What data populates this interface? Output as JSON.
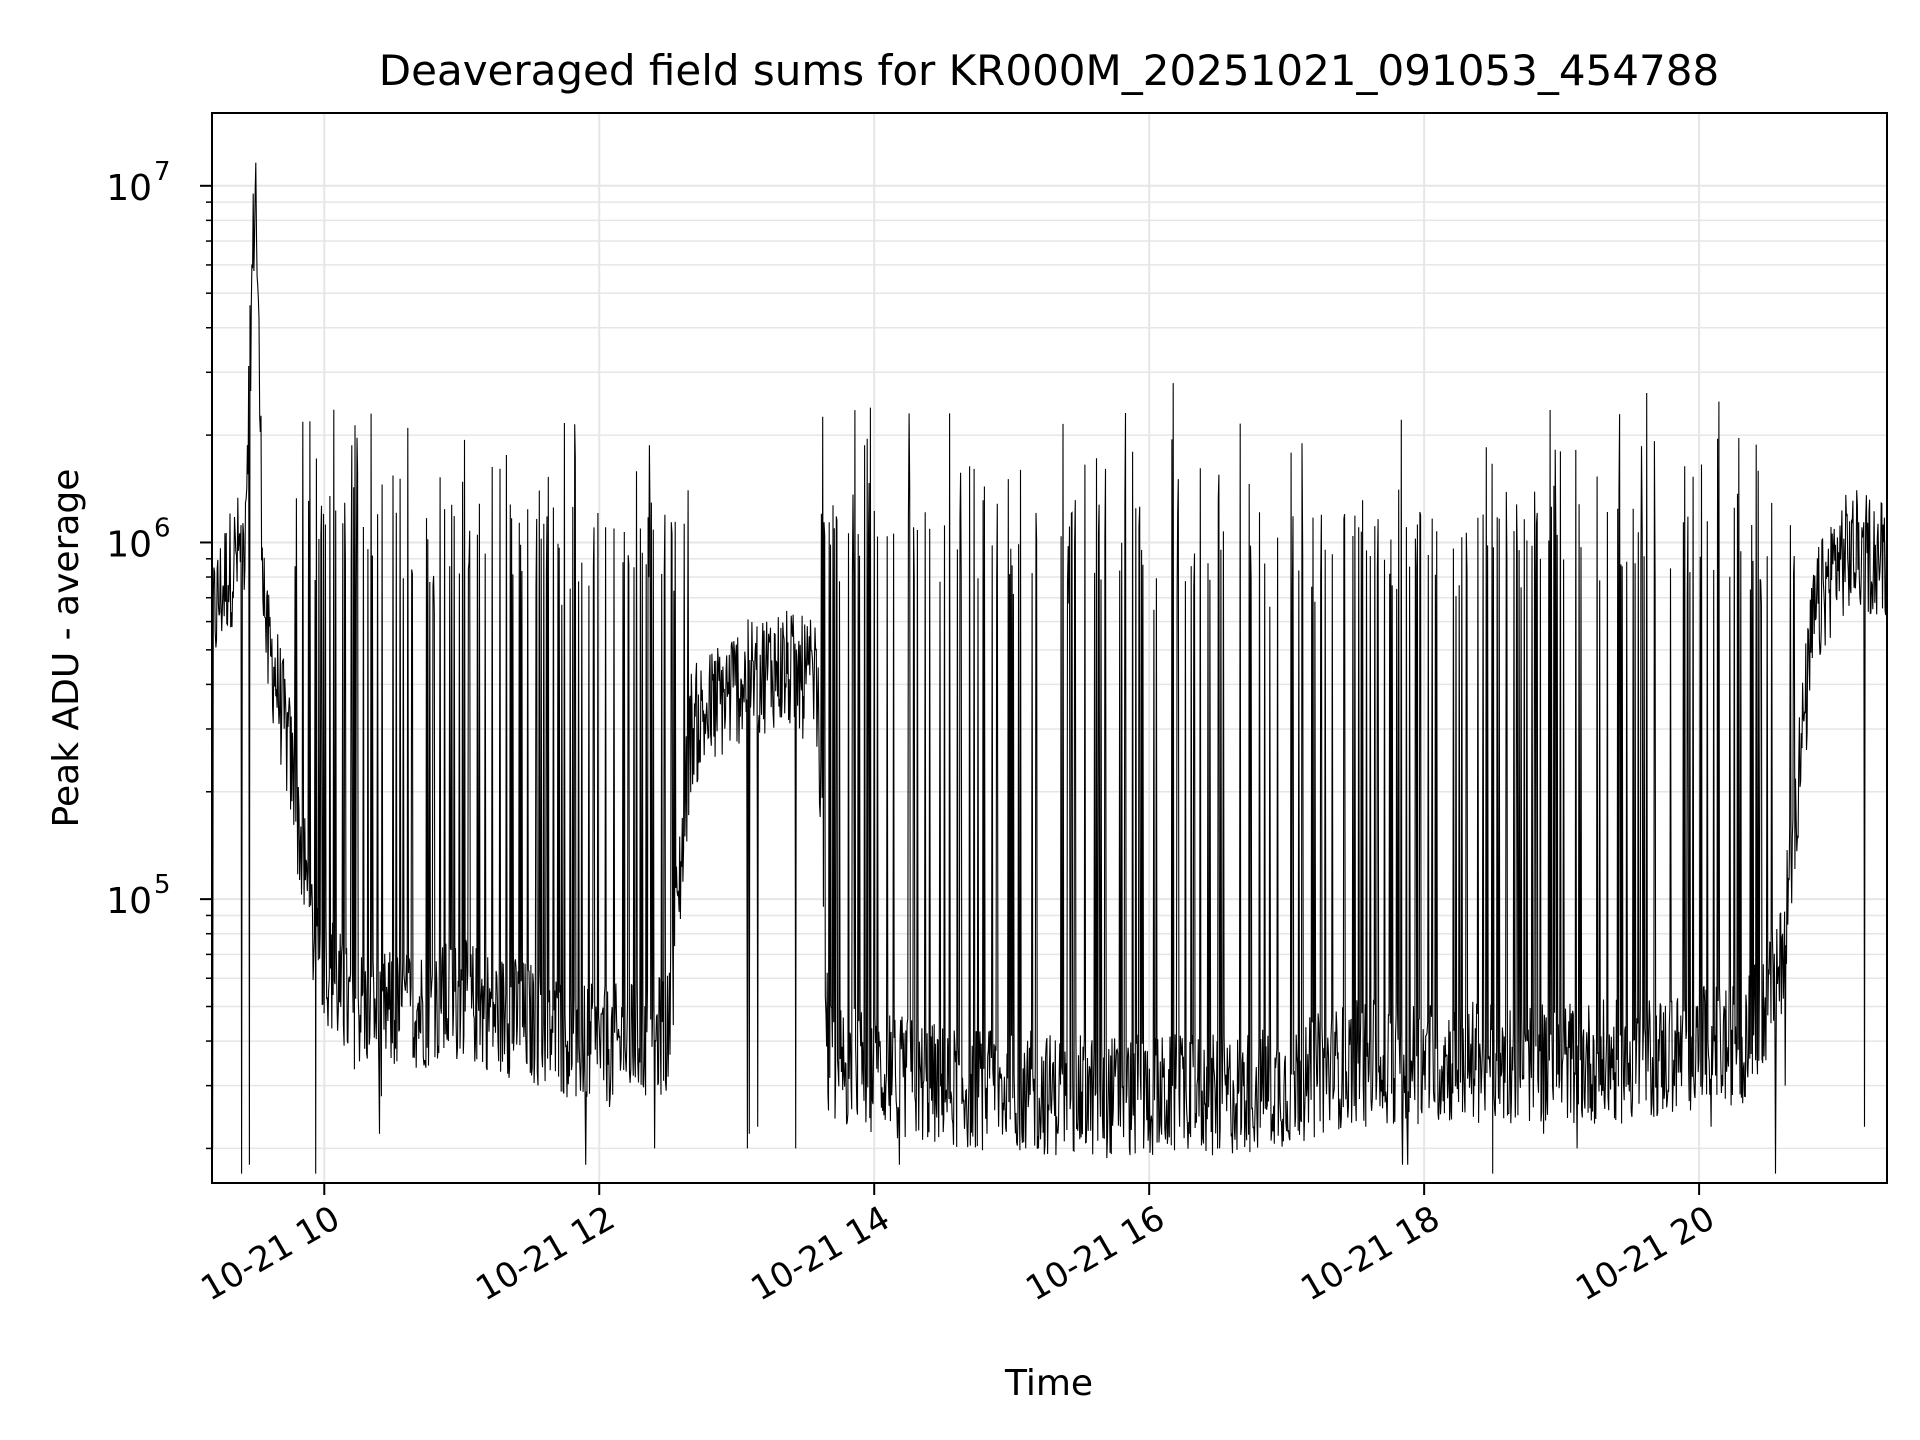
{
  "chart_data": {
    "type": "line",
    "title": "Deaveraged field sums for KR000M_20251021_091053_454788",
    "xlabel": "Time",
    "ylabel": "Peak ADU - average",
    "y_scale": "log",
    "ylim": [
      16000,
      16000000
    ],
    "xlim": [
      "2025-10-21T09:11",
      "2025-10-21T21:22"
    ],
    "grid": true,
    "grid_color": "#e6e6e6",
    "line_color": "#000000",
    "x_ticks": [
      {
        "value": "2025-10-21T10:00",
        "label": "10-21 10"
      },
      {
        "value": "2025-10-21T12:00",
        "label": "10-21 12"
      },
      {
        "value": "2025-10-21T14:00",
        "label": "10-21 14"
      },
      {
        "value": "2025-10-21T16:00",
        "label": "10-21 16"
      },
      {
        "value": "2025-10-21T18:00",
        "label": "10-21 18"
      },
      {
        "value": "2025-10-21T20:00",
        "label": "10-21 20"
      }
    ],
    "y_ticks": [
      {
        "value": 100000,
        "base": "10",
        "exp": "5"
      },
      {
        "value": 1000000,
        "base": "10",
        "exp": "6"
      },
      {
        "value": 10000000,
        "base": "10",
        "exp": "7"
      }
    ],
    "series": [
      {
        "x": [
          "2025-10-21T09:11",
          "2025-10-21T09:17",
          "2025-10-21T09:25",
          "2025-10-21T09:30",
          "2025-10-21T09:33",
          "2025-10-21T09:35",
          "2025-10-21T09:38",
          "2025-10-21T09:45",
          "2025-10-21T09:55",
          "2025-10-21T10:10",
          "2025-10-21T10:30",
          "2025-10-21T11:00",
          "2025-10-21T11:30",
          "2025-10-21T12:00",
          "2025-10-21T12:30",
          "2025-10-21T12:40",
          "2025-10-21T13:00",
          "2025-10-21T13:17",
          "2025-10-21T13:35",
          "2025-10-21T13:40",
          "2025-10-21T14:30",
          "2025-10-21T15:30",
          "2025-10-21T16:30",
          "2025-10-21T17:00",
          "2025-10-21T17:30",
          "2025-10-21T18:30",
          "2025-10-21T19:30",
          "2025-10-21T20:20",
          "2025-10-21T20:35",
          "2025-10-21T20:50",
          "2025-10-21T21:00",
          "2025-10-21T21:10",
          "2025-10-21T21:22"
        ],
        "y": [
          600000,
          800000,
          1000000,
          11000000,
          1000000,
          500000,
          450000,
          250000,
          80000,
          50000,
          48000,
          52000,
          45000,
          38000,
          42000,
          300000,
          400000,
          450000,
          400000,
          35000,
          30000,
          28000,
          28000,
          30000,
          35000,
          35000,
          35000,
          40000,
          60000,
          600000,
          900000,
          950000,
          900000
        ],
        "spikes_high": [
          1100000,
          1300000,
          1400000,
          1300000,
          1900000,
          1600000,
          2800000,
          1300000,
          1250000,
          1250000,
          1300000,
          1200000,
          1300000,
          1300000,
          1300000,
          1300000,
          2300000,
          2400000
        ],
        "spikes_low": [
          23000,
          30000,
          20000,
          18000,
          17000,
          18000,
          20000,
          19000,
          22000,
          28000
        ]
      }
    ]
  }
}
